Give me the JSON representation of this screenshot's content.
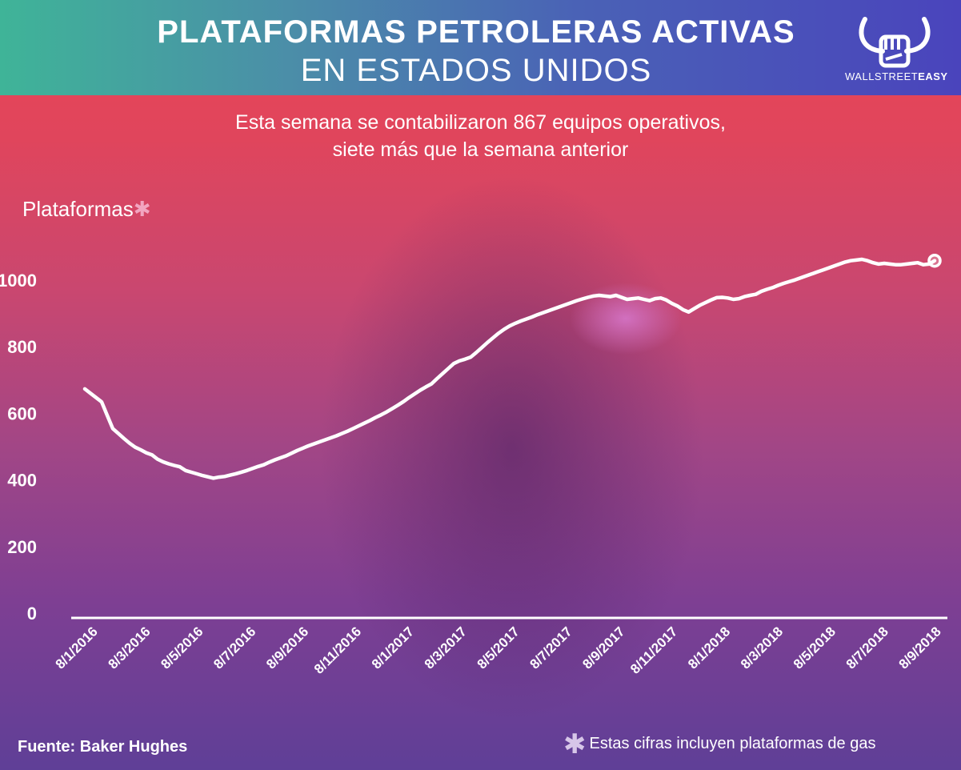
{
  "header": {
    "title_line1": "PLATAFORMAS PETROLERAS ACTIVAS",
    "title_line2": "EN ESTADOS UNIDOS"
  },
  "logo": {
    "icon": "bull-fist-icon",
    "text_regular": "WALLSTREET",
    "text_bold": "EASY"
  },
  "subtitle": {
    "line1": "Esta semana se contabilizaron 867 equipos operativos,",
    "line2": "siete más que la semana anterior"
  },
  "y_axis": {
    "label": "Plataformas",
    "marker": "✱"
  },
  "footer": {
    "source": "Fuente: Baker Hughes",
    "note_marker": "✱",
    "note": "Estas cifras incluyen plataformas de gas"
  },
  "colors": {
    "line": "#ffffff",
    "header_start": "#3fb498",
    "header_end": "#4a44bc",
    "asterisk": "#f2a5c0"
  },
  "chart_data": {
    "type": "line",
    "title": "PLATAFORMAS PETROLERAS ACTIVAS EN ESTADOS UNIDOS",
    "ylabel": "Plataformas",
    "xlabel": "",
    "ylim": [
      0,
      1000
    ],
    "yticks": [
      0,
      200,
      400,
      600,
      800,
      1000
    ],
    "xticks": [
      "8/1/2016",
      "8/3/2016",
      "8/5/2016",
      "8/7/2016",
      "8/9/2016",
      "8/11/2016",
      "8/1/2017",
      "8/3/2017",
      "8/5/2017",
      "8/7/2017",
      "8/9/2017",
      "8/11/2017",
      "8/1/2018",
      "8/3/2018",
      "8/5/2018",
      "8/7/2018",
      "8/9/2018"
    ],
    "grid": false,
    "series": [
      {
        "values": [
          671,
          658,
          645,
          632,
          592,
          552,
          537,
          522,
          508,
          496,
          488,
          479,
          473,
          460,
          452,
          446,
          441,
          437,
          426,
          421,
          416,
          411,
          407,
          403,
          406,
          408,
          412,
          416,
          421,
          426,
          432,
          438,
          443,
          451,
          458,
          464,
          470,
          478,
          486,
          493,
          500,
          506,
          512,
          518,
          524,
          530,
          537,
          544,
          552,
          560,
          568,
          576,
          585,
          593,
          602,
          612,
          622,
          633,
          645,
          656,
          667,
          677,
          686,
          702,
          717,
          732,
          747,
          755,
          760,
          766,
          780,
          795,
          810,
          824,
          838,
          850,
          860,
          868,
          875,
          881,
          887,
          894,
          900,
          906,
          912,
          918,
          924,
          930,
          936,
          941,
          946,
          950,
          952,
          950,
          948,
          952,
          946,
          940,
          942,
          944,
          940,
          936,
          942,
          944,
          938,
          928,
          920,
          909,
          902,
          912,
          922,
          930,
          938,
          945,
          946,
          944,
          940,
          942,
          948,
          952,
          955,
          964,
          970,
          975,
          982,
          988,
          993,
          998,
          1004,
          1010,
          1016,
          1022,
          1028,
          1034,
          1040,
          1046,
          1052,
          1056,
          1058,
          1060,
          1056,
          1050,
          1046,
          1048,
          1046,
          1044,
          1044,
          1046,
          1048,
          1050,
          1044,
          1046,
          1056
        ]
      }
    ]
  }
}
